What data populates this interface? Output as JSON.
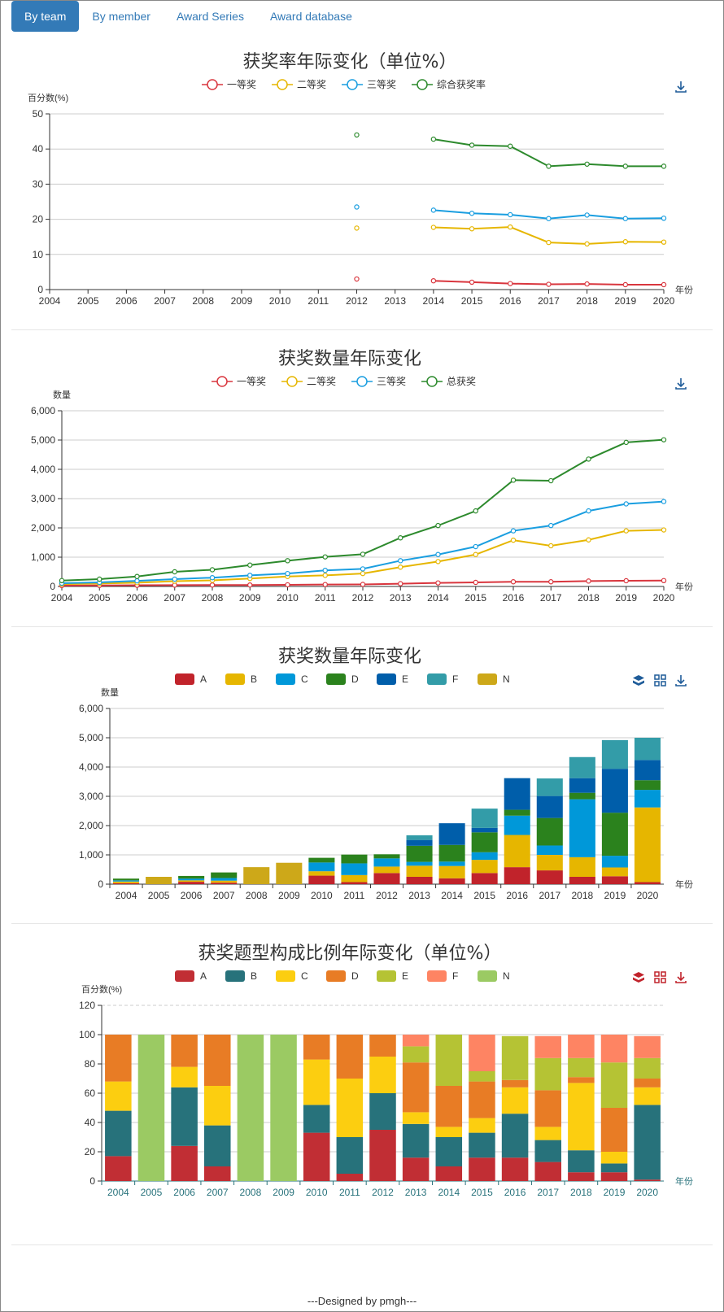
{
  "tabs": [
    {
      "label": "By team",
      "active": true
    },
    {
      "label": "By member",
      "active": false
    },
    {
      "label": "Award Series",
      "active": false
    },
    {
      "label": "Award database",
      "active": false
    }
  ],
  "footer": "---Designed by pmgh---",
  "chart_data": [
    {
      "type": "line",
      "title": "获奖率年际变化（单位%）",
      "ylabel": "百分数(%)",
      "xlabel": "年份",
      "x": [
        2004,
        2005,
        2006,
        2007,
        2008,
        2009,
        2010,
        2011,
        2012,
        2013,
        2014,
        2015,
        2016,
        2017,
        2018,
        2019,
        2020
      ],
      "ylim": [
        0,
        50
      ],
      "yticks": [
        0,
        10,
        20,
        30,
        40,
        50
      ],
      "grid": true,
      "legend": "top-center",
      "series": [
        {
          "name": "一等奖",
          "color": "#d9363e",
          "values": [
            null,
            null,
            null,
            null,
            null,
            null,
            null,
            null,
            3.0,
            null,
            2.5,
            2.1,
            1.7,
            1.5,
            1.6,
            1.4,
            1.4
          ]
        },
        {
          "name": "二等奖",
          "color": "#e6b600",
          "values": [
            null,
            null,
            null,
            null,
            null,
            null,
            null,
            null,
            17.5,
            null,
            17.7,
            17.3,
            17.8,
            13.4,
            13.0,
            13.6,
            13.5
          ]
        },
        {
          "name": "三等奖",
          "color": "#1a9ee0",
          "values": [
            null,
            null,
            null,
            null,
            null,
            null,
            null,
            null,
            23.5,
            null,
            22.6,
            21.7,
            21.3,
            20.2,
            21.2,
            20.2,
            20.3
          ]
        },
        {
          "name": "综合获奖率",
          "color": "#2d8a2d",
          "values": [
            null,
            null,
            null,
            null,
            null,
            null,
            null,
            null,
            44.0,
            null,
            42.8,
            41.1,
            40.8,
            35.1,
            35.7,
            35.1,
            35.1
          ]
        }
      ]
    },
    {
      "type": "line",
      "title": "获奖数量年际变化",
      "ylabel": "数量",
      "xlabel": "年份",
      "x": [
        2004,
        2005,
        2006,
        2007,
        2008,
        2009,
        2010,
        2011,
        2012,
        2013,
        2014,
        2015,
        2016,
        2017,
        2018,
        2019,
        2020
      ],
      "ylim": [
        0,
        6000
      ],
      "yticks": [
        0,
        1000,
        2000,
        3000,
        4000,
        5000,
        6000
      ],
      "ytick_labels": [
        "0",
        "1,000",
        "2,000",
        "3,000",
        "4,000",
        "5,000",
        "6,000"
      ],
      "grid": true,
      "legend": "top-center",
      "series": [
        {
          "name": "一等奖",
          "color": "#d9363e",
          "values": [
            30,
            35,
            40,
            45,
            50,
            50,
            55,
            65,
            70,
            95,
            120,
            140,
            160,
            160,
            185,
            195,
            200
          ]
        },
        {
          "name": "二等奖",
          "color": "#e6b600",
          "values": [
            80,
            100,
            130,
            180,
            210,
            270,
            340,
            380,
            440,
            660,
            850,
            1090,
            1580,
            1390,
            1590,
            1900,
            1930
          ]
        },
        {
          "name": "三等奖",
          "color": "#1a9ee0",
          "values": [
            110,
            140,
            190,
            250,
            300,
            380,
            440,
            550,
            600,
            880,
            1090,
            1360,
            1900,
            2080,
            2580,
            2820,
            2900
          ]
        },
        {
          "name": "总获奖",
          "color": "#2d8a2d",
          "values": [
            200,
            250,
            340,
            500,
            570,
            730,
            880,
            1010,
            1100,
            1660,
            2080,
            2580,
            3630,
            3610,
            4350,
            4920,
            5010
          ]
        }
      ]
    },
    {
      "type": "bar",
      "stacked": true,
      "title": "获奖数量年际变化",
      "ylabel": "数量",
      "xlabel": "年份",
      "categories": [
        "2004",
        "2005",
        "2006",
        "2007",
        "2008",
        "2009",
        "2010",
        "2011",
        "2012",
        "2013",
        "2014",
        "2015",
        "2016",
        "2017",
        "2018",
        "2019",
        "2020"
      ],
      "ylim": [
        0,
        6000
      ],
      "yticks": [
        0,
        1000,
        2000,
        3000,
        4000,
        5000,
        6000
      ],
      "ytick_labels": [
        "0",
        "1,000",
        "2,000",
        "3,000",
        "4,000",
        "5,000",
        "6,000"
      ],
      "grid": true,
      "legend": "top-center",
      "series": [
        {
          "name": "A",
          "color": "#c1232b",
          "values": [
            30,
            0,
            80,
            50,
            0,
            0,
            290,
            70,
            380,
            250,
            200,
            380,
            580,
            470,
            250,
            270,
            70
          ]
        },
        {
          "name": "B",
          "color": "#e6b600",
          "values": [
            60,
            0,
            50,
            70,
            0,
            0,
            150,
            240,
            220,
            380,
            420,
            450,
            1100,
            530,
            670,
            300,
            2550
          ]
        },
        {
          "name": "C",
          "color": "#0098d9",
          "values": [
            40,
            0,
            60,
            90,
            0,
            0,
            300,
            400,
            280,
            130,
            150,
            260,
            660,
            320,
            1980,
            400,
            600
          ]
        },
        {
          "name": "D",
          "color": "#2b821d",
          "values": [
            60,
            0,
            90,
            190,
            0,
            0,
            160,
            300,
            140,
            550,
            570,
            680,
            200,
            940,
            220,
            1470,
            330
          ]
        },
        {
          "name": "E",
          "color": "#005eaa",
          "values": [
            0,
            0,
            0,
            0,
            0,
            0,
            0,
            0,
            0,
            200,
            740,
            150,
            1080,
            750,
            500,
            1500,
            690
          ]
        },
        {
          "name": "F",
          "color": "#339ca8",
          "values": [
            0,
            0,
            0,
            0,
            0,
            0,
            0,
            0,
            0,
            160,
            0,
            660,
            0,
            600,
            720,
            980,
            760
          ]
        },
        {
          "name": "N",
          "color": "#cda819",
          "values": [
            0,
            250,
            0,
            0,
            580,
            730,
            0,
            0,
            0,
            0,
            0,
            0,
            0,
            0,
            0,
            0,
            0
          ]
        }
      ]
    },
    {
      "type": "bar",
      "stacked": true,
      "title": "获奖题型构成比例年际变化（单位%）",
      "ylabel": "百分数(%)",
      "xlabel": "年份",
      "categories": [
        "2004",
        "2005",
        "2006",
        "2007",
        "2008",
        "2009",
        "2010",
        "2011",
        "2012",
        "2013",
        "2014",
        "2015",
        "2016",
        "2017",
        "2018",
        "2019",
        "2020"
      ],
      "ylim": [
        0,
        120
      ],
      "yticks": [
        0,
        20,
        40,
        60,
        80,
        100,
        120
      ],
      "grid": true,
      "legend": "top-center",
      "series": [
        {
          "name": "A",
          "color": "#c12e34",
          "values": [
            17,
            0,
            24,
            10,
            0,
            0,
            33,
            5,
            35,
            16,
            10,
            16,
            16,
            13,
            6,
            6,
            1
          ]
        },
        {
          "name": "B",
          "color": "#27727b",
          "values": [
            31,
            0,
            40,
            28,
            0,
            0,
            19,
            25,
            25,
            23,
            20,
            17,
            30,
            15,
            15,
            6,
            51
          ]
        },
        {
          "name": "C",
          "color": "#fcce10",
          "values": [
            20,
            0,
            14,
            27,
            0,
            0,
            31,
            40,
            25,
            8,
            7,
            10,
            18,
            9,
            46,
            8,
            12
          ]
        },
        {
          "name": "D",
          "color": "#e87c25",
          "values": [
            32,
            0,
            22,
            35,
            0,
            0,
            17,
            30,
            15,
            34,
            28,
            25,
            5,
            25,
            4,
            30,
            6
          ]
        },
        {
          "name": "E",
          "color": "#b5c334",
          "values": [
            0,
            0,
            0,
            0,
            0,
            0,
            0,
            0,
            0,
            11,
            35,
            7,
            30,
            22,
            13,
            31,
            14
          ]
        },
        {
          "name": "F",
          "color": "#fe8463",
          "values": [
            0,
            0,
            0,
            0,
            0,
            0,
            0,
            0,
            0,
            8,
            0,
            25,
            0,
            15,
            16,
            19,
            15
          ]
        },
        {
          "name": "N",
          "color": "#9bca63",
          "values": [
            0,
            100,
            0,
            0,
            100,
            100,
            0,
            0,
            0,
            0,
            0,
            0,
            0,
            0,
            0,
            0,
            0
          ]
        }
      ]
    }
  ]
}
